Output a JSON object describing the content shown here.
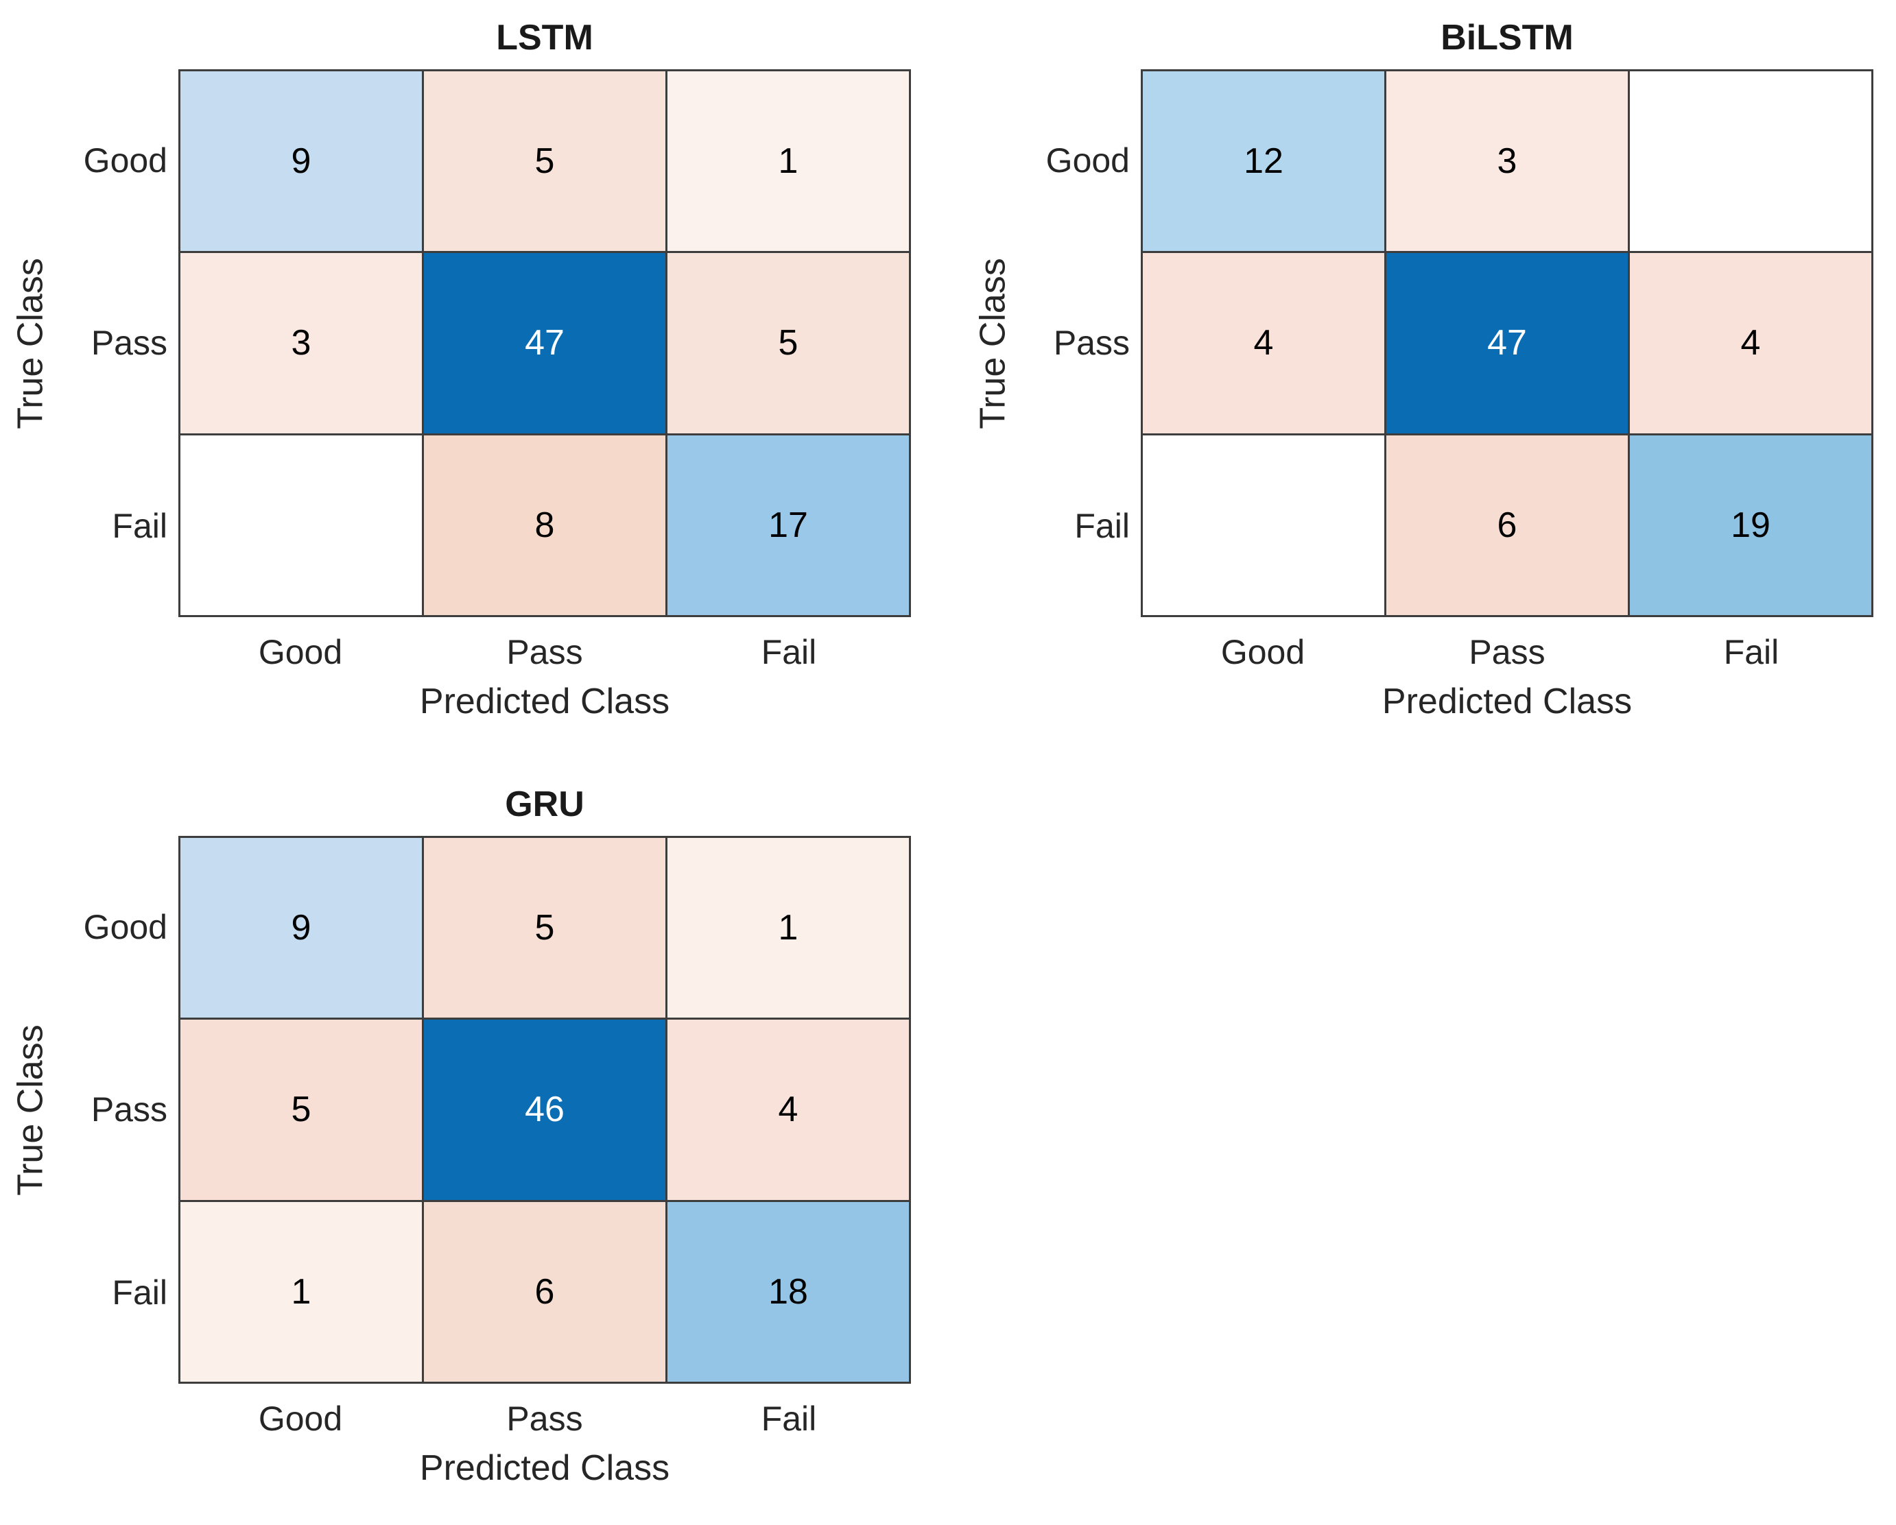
{
  "figure": {
    "background": "#ffffff",
    "axes_text_color": "#262626",
    "grid_line_color": "#3d3d3d",
    "diagonal_accent_color": "#0a6cb3",
    "offdiagonal_accent_color": "#f5d9cb"
  },
  "chart_data": [
    {
      "type": "heatmap",
      "subtype": "confusion-matrix",
      "title": "LSTM",
      "xlabel": "Predicted Class",
      "ylabel": "True Class",
      "x_categories": [
        "Good",
        "Pass",
        "Fail"
      ],
      "y_categories": [
        "Good",
        "Pass",
        "Fail"
      ],
      "matrix": [
        [
          9,
          5,
          1
        ],
        [
          3,
          47,
          5
        ],
        [
          0,
          8,
          17
        ]
      ],
      "cell_labels": [
        [
          "9",
          "5",
          "1"
        ],
        [
          "3",
          "47",
          "5"
        ],
        [
          "",
          "8",
          "17"
        ]
      ],
      "cell_colors": [
        [
          "#C6DDF1",
          "#F8E3DA",
          "#FCF2ED"
        ],
        [
          "#FAE9E2",
          "#0A6CB3",
          "#F8E3DA"
        ],
        [
          "#FFFFFF",
          "#F5D9CB",
          "#9AC8E8"
        ]
      ],
      "text_colors": [
        [
          "#000000",
          "#000000",
          "#000000"
        ],
        [
          "#000000",
          "#FFFFFF",
          "#000000"
        ],
        [
          "#000000",
          "#000000",
          "#000000"
        ]
      ],
      "legend": "off",
      "grid": "on"
    },
    {
      "type": "heatmap",
      "subtype": "confusion-matrix",
      "title": "BiLSTM",
      "xlabel": "Predicted Class",
      "ylabel": "True Class",
      "x_categories": [
        "Good",
        "Pass",
        "Fail"
      ],
      "y_categories": [
        "Good",
        "Pass",
        "Fail"
      ],
      "matrix": [
        [
          12,
          3,
          0
        ],
        [
          4,
          47,
          4
        ],
        [
          0,
          6,
          19
        ]
      ],
      "cell_labels": [
        [
          "12",
          "3",
          ""
        ],
        [
          "4",
          "47",
          "4"
        ],
        [
          "",
          "6",
          "19"
        ]
      ],
      "cell_colors": [
        [
          "#B2D6ED",
          "#FAE9E2",
          "#FFFFFF"
        ],
        [
          "#F8E2D9",
          "#0A6CB3",
          "#F8E2D9"
        ],
        [
          "#FFFFFF",
          "#F6DCD1",
          "#8FC3E4"
        ]
      ],
      "text_colors": [
        [
          "#000000",
          "#000000",
          "#000000"
        ],
        [
          "#000000",
          "#FFFFFF",
          "#000000"
        ],
        [
          "#000000",
          "#000000",
          "#000000"
        ]
      ],
      "legend": "off",
      "grid": "on"
    },
    {
      "type": "heatmap",
      "subtype": "confusion-matrix",
      "title": "GRU",
      "xlabel": "Predicted Class",
      "ylabel": "True Class",
      "x_categories": [
        "Good",
        "Pass",
        "Fail"
      ],
      "y_categories": [
        "Good",
        "Pass",
        "Fail"
      ],
      "matrix": [
        [
          9,
          5,
          1
        ],
        [
          5,
          46,
          4
        ],
        [
          1,
          6,
          18
        ]
      ],
      "cell_labels": [
        [
          "9",
          "5",
          "1"
        ],
        [
          "5",
          "46",
          "4"
        ],
        [
          "1",
          "6",
          "18"
        ]
      ],
      "cell_colors": [
        [
          "#C6DDF1",
          "#F7DFD5",
          "#FBF0EA"
        ],
        [
          "#F7DFD5",
          "#0B6DB4",
          "#F8E2D9"
        ],
        [
          "#FBF0EA",
          "#F6DDD2",
          "#94C5E6"
        ]
      ],
      "text_colors": [
        [
          "#000000",
          "#000000",
          "#000000"
        ],
        [
          "#000000",
          "#FFFFFF",
          "#000000"
        ],
        [
          "#000000",
          "#000000",
          "#000000"
        ]
      ],
      "legend": "off",
      "grid": "on"
    }
  ]
}
